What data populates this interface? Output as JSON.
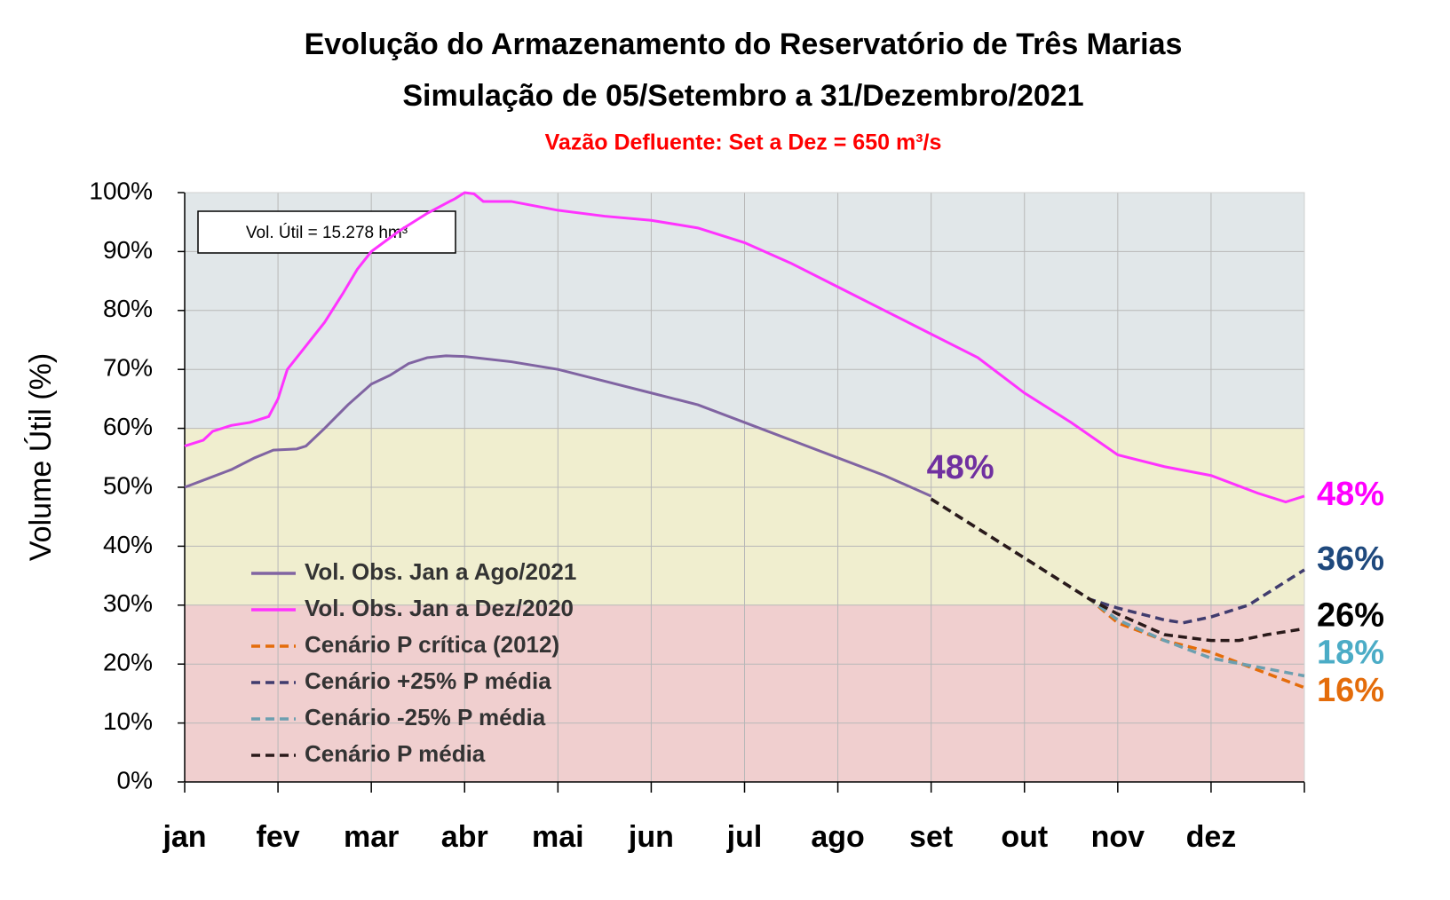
{
  "chart_data": {
    "type": "line",
    "title": [
      "Evolução do Armazenamento do Reservatório de Três Marias",
      "Simulação de 05/Setembro a 31/Dezembro/2021"
    ],
    "subtitle": "Vazão Defluente: Set a Dez = 650 m³/s",
    "ylabel": "Volume  Útil (%)",
    "note": "Vol. Útil  = 15.278 hm³",
    "xlim": [
      0,
      12
    ],
    "xticks": [
      {
        "value": 0,
        "label": "jan"
      },
      {
        "value": 1,
        "label": "fev"
      },
      {
        "value": 2,
        "label": "mar"
      },
      {
        "value": 3,
        "label": "abr"
      },
      {
        "value": 4,
        "label": "mai"
      },
      {
        "value": 5,
        "label": "jun"
      },
      {
        "value": 6,
        "label": "jul"
      },
      {
        "value": 7,
        "label": "ago"
      },
      {
        "value": 8,
        "label": "set"
      },
      {
        "value": 9,
        "label": "out"
      },
      {
        "value": 10,
        "label": "nov"
      },
      {
        "value": 11,
        "label": "dez"
      }
    ],
    "ylim": [
      0,
      100
    ],
    "yticks": [
      {
        "value": 0,
        "label": "0%"
      },
      {
        "value": 10,
        "label": "10%"
      },
      {
        "value": 20,
        "label": "20%"
      },
      {
        "value": 30,
        "label": "30%"
      },
      {
        "value": 40,
        "label": "40%"
      },
      {
        "value": 50,
        "label": "50%"
      },
      {
        "value": 60,
        "label": "60%"
      },
      {
        "value": 70,
        "label": "70%"
      },
      {
        "value": 80,
        "label": "80%"
      },
      {
        "value": 90,
        "label": "90%"
      },
      {
        "value": 100,
        "label": "100%"
      }
    ],
    "grid": true,
    "bands": [
      {
        "from": 0,
        "to": 30,
        "color": "#f0cfcf"
      },
      {
        "from": 30,
        "to": 60,
        "color": "#f0eecf"
      },
      {
        "from": 60,
        "to": 100,
        "color": "#e1e7e9"
      }
    ],
    "series": [
      {
        "name": "Vol. Obs. Jan a Ago/2021",
        "color": "#8064a2",
        "dashed": false,
        "label": "48%",
        "label_color": "#7030a0",
        "x": [
          0,
          0.25,
          0.5,
          0.75,
          0.95,
          1.2,
          1.3,
          1.5,
          1.75,
          2.0,
          2.2,
          2.4,
          2.6,
          2.8,
          3.0,
          3.5,
          4.0,
          4.5,
          5.0,
          5.5,
          6.0,
          6.5,
          7.0,
          7.5,
          8.0
        ],
        "values": [
          50,
          51.5,
          53,
          55,
          56.3,
          56.5,
          57,
          60,
          64,
          67.5,
          69,
          71,
          72,
          72.3,
          72.2,
          71.3,
          70,
          68,
          66,
          64,
          61,
          58,
          55,
          52,
          48.5
        ]
      },
      {
        "name": "Vol. Obs. Jan a Dez/2020",
        "color": "#ff33ff",
        "dashed": false,
        "label": "48%",
        "label_color": "#ff00ff",
        "x": [
          0,
          0.2,
          0.3,
          0.5,
          0.7,
          0.9,
          1.0,
          1.1,
          1.3,
          1.5,
          1.7,
          1.85,
          2.0,
          2.3,
          2.6,
          2.9,
          3.0,
          3.1,
          3.2,
          3.5,
          4.0,
          4.5,
          5.0,
          5.5,
          6.0,
          6.5,
          7.0,
          7.5,
          8.0,
          8.5,
          9.0,
          9.5,
          10.0,
          10.5,
          11.0,
          11.5,
          11.8,
          12.0
        ],
        "values": [
          57,
          58,
          59.5,
          60.5,
          61,
          62,
          65,
          70,
          74,
          78,
          83,
          87,
          90,
          93.5,
          96.5,
          99,
          100,
          99.8,
          98.5,
          98.5,
          97,
          96,
          95.3,
          94,
          91.5,
          88,
          84,
          80,
          76,
          72,
          66,
          61,
          55.5,
          53.5,
          52,
          49,
          47.5,
          48.5
        ]
      },
      {
        "name": "Cenário P crítica (2012)",
        "color": "#e46c0a",
        "dashed": true,
        "label": "16%",
        "label_color": "#e46c0a",
        "x": [
          8,
          9,
          9.7,
          10,
          10.5,
          11,
          11.5,
          12
        ],
        "values": [
          48,
          38,
          31,
          27,
          24,
          22,
          19,
          16
        ]
      },
      {
        "name": "Cenário +25% P média",
        "color": "#403c6e",
        "dashed": true,
        "label": "36%",
        "label_color": "#1f497d",
        "x": [
          8,
          9,
          9.7,
          10,
          10.5,
          10.7,
          11,
          11.4,
          11.7,
          12
        ],
        "values": [
          48,
          38,
          31,
          29.5,
          27.5,
          27,
          28,
          30,
          33,
          36
        ]
      },
      {
        "name": "Cenário -25% P média",
        "color": "#6c9fb0",
        "dashed": true,
        "label": "18%",
        "label_color": "#4bacc6",
        "x": [
          8,
          9,
          9.7,
          10,
          10.5,
          11,
          11.5,
          12
        ],
        "values": [
          48,
          38,
          31,
          27.5,
          24,
          21,
          19.5,
          18
        ]
      },
      {
        "name": "Cenário P média",
        "color": "#2a1a1a",
        "dashed": true,
        "label": "26%",
        "label_color": "#000000",
        "x": [
          8,
          9,
          9.7,
          10,
          10.5,
          11,
          11.3,
          11.6,
          12
        ],
        "values": [
          48,
          38,
          31,
          28.5,
          25,
          24,
          24,
          25,
          26
        ]
      }
    ]
  }
}
